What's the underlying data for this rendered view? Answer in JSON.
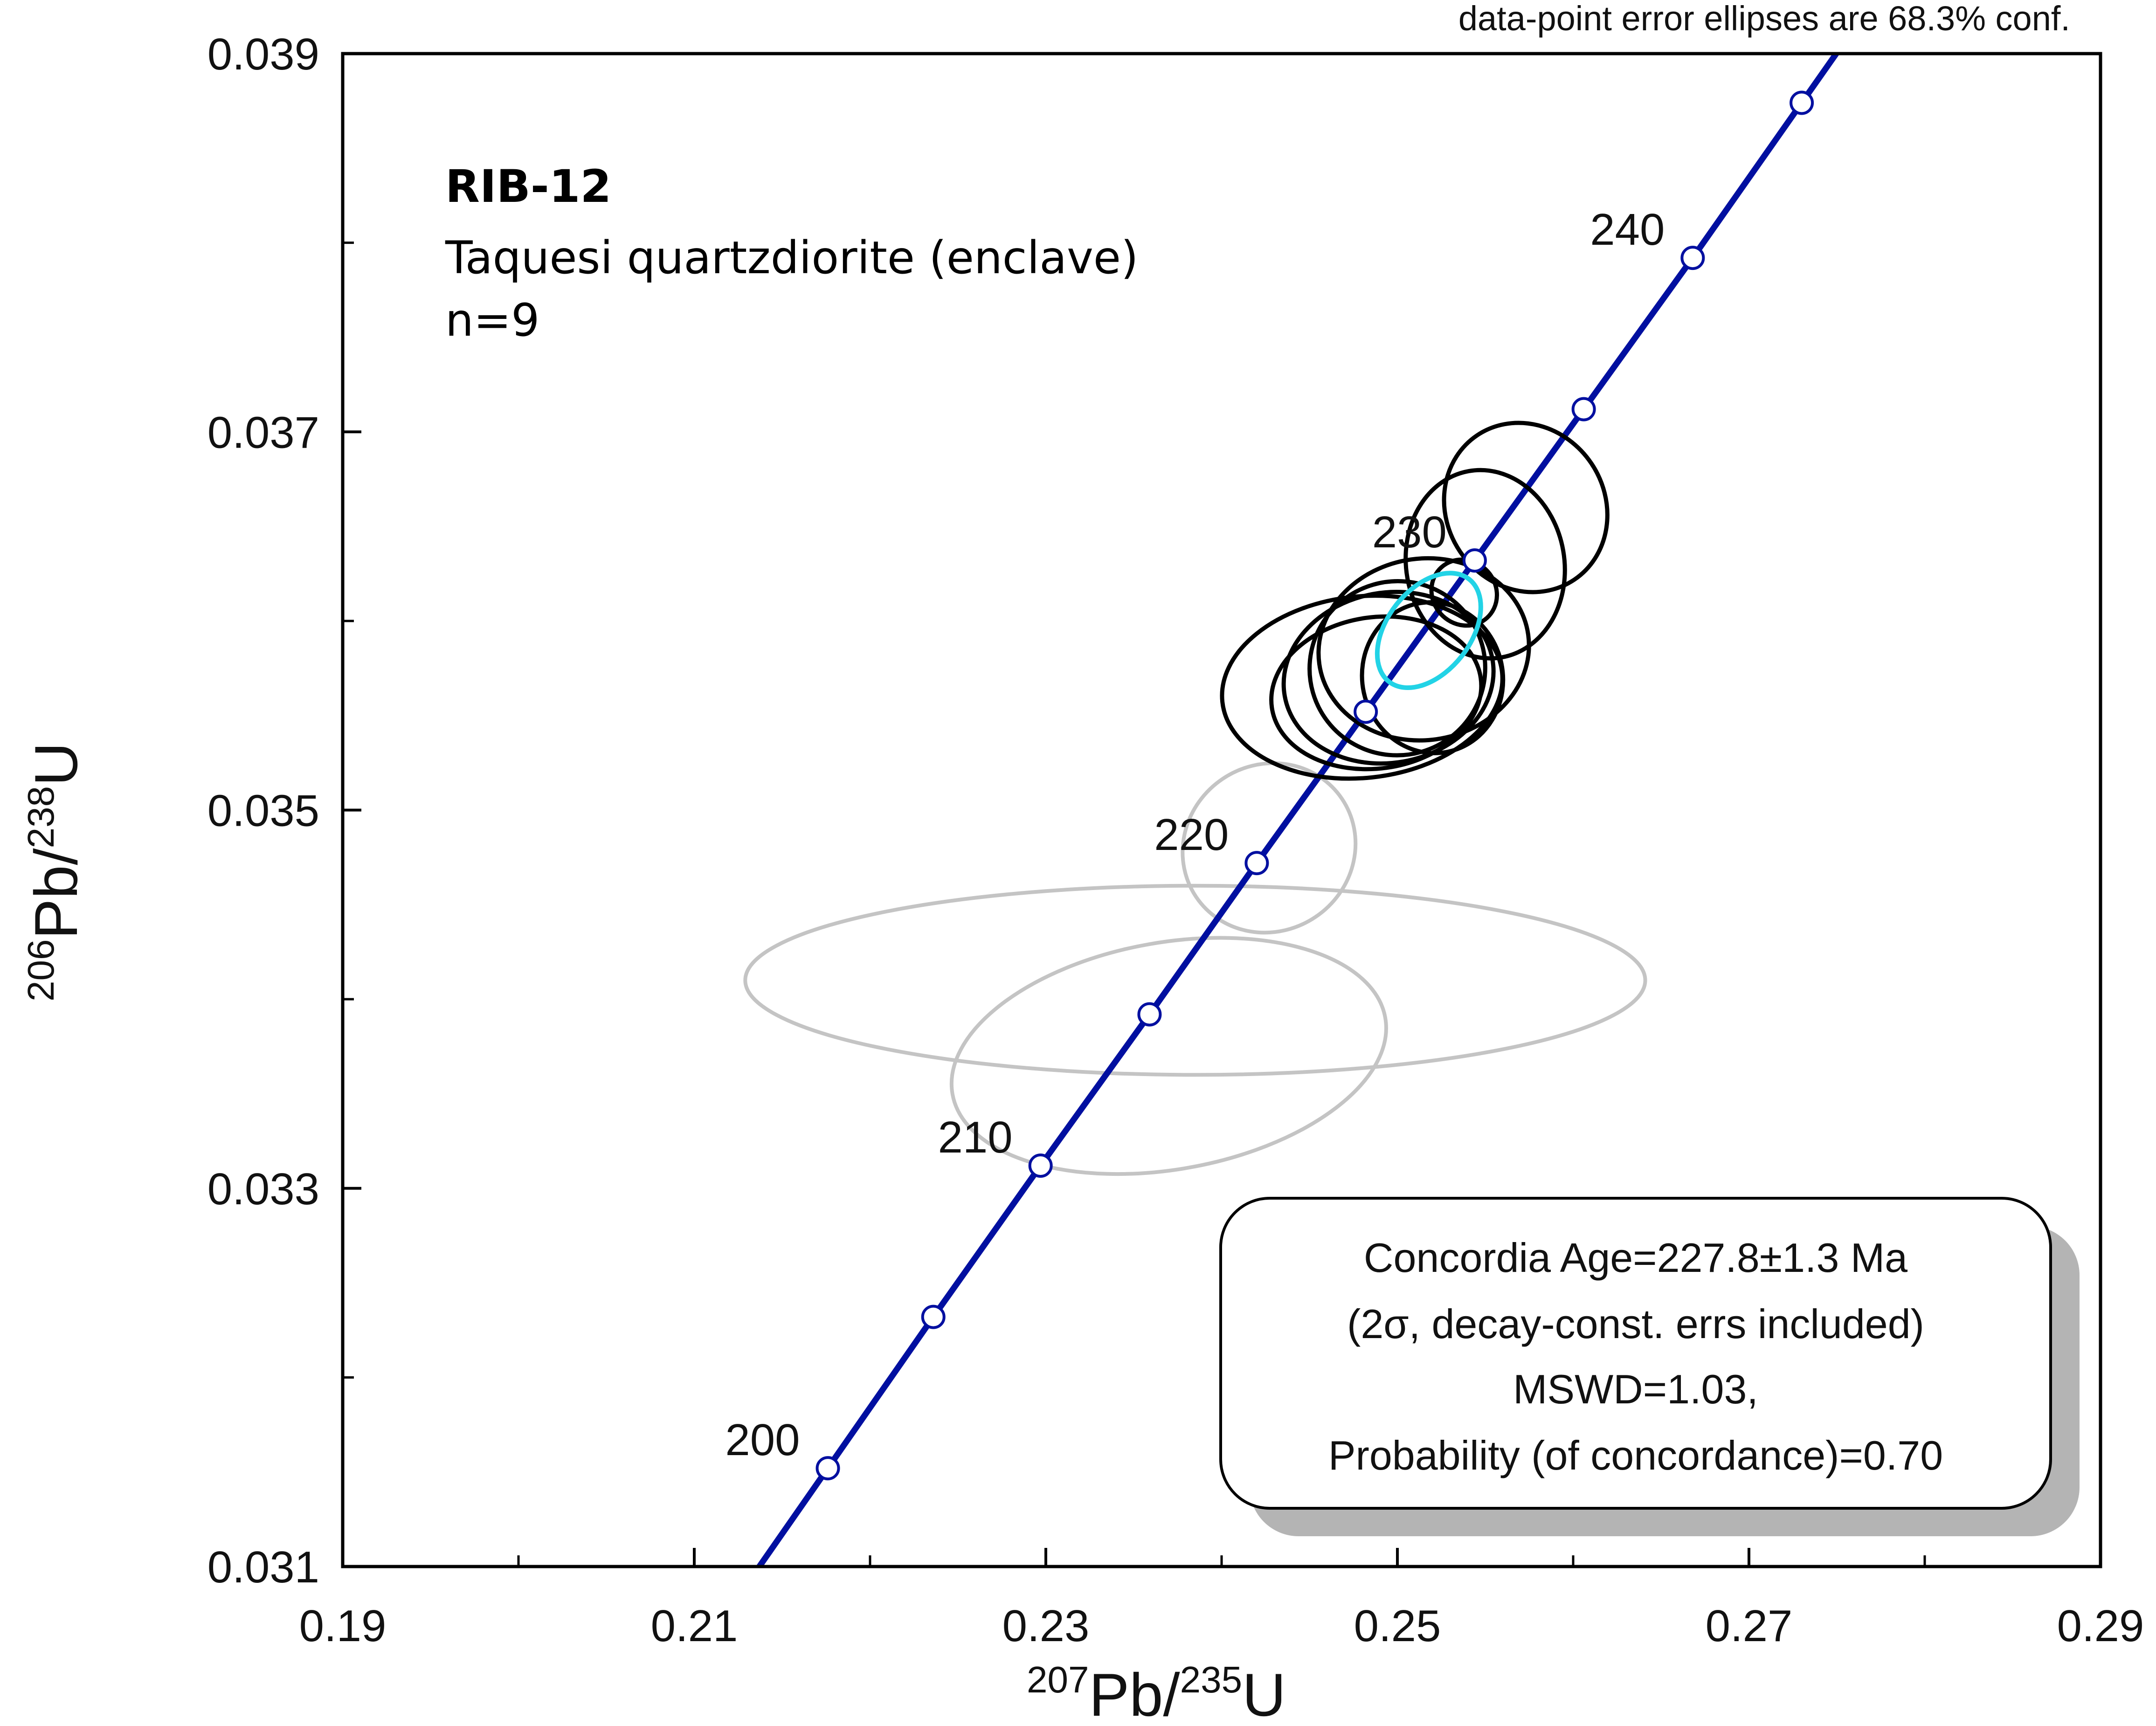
{
  "chart_data": {
    "type": "scatter",
    "subtype": "concordia-diagram",
    "note": "data-point error ellipses are 68.3% conf.",
    "xlabel": {
      "sup1": "207",
      "base1": "Pb/",
      "sup2": "235",
      "base2": "U"
    },
    "ylabel": {
      "sup1": "206",
      "base1": "Pb/",
      "sup2": "238",
      "base2": "U"
    },
    "xlim": [
      0.19,
      0.29
    ],
    "ylim": [
      0.031,
      0.039
    ],
    "x_ticks": [
      {
        "value": 0.19,
        "label": "0.19"
      },
      {
        "value": 0.21,
        "label": "0.21"
      },
      {
        "value": 0.23,
        "label": "0.23"
      },
      {
        "value": 0.25,
        "label": "0.25"
      },
      {
        "value": 0.27,
        "label": "0.27"
      },
      {
        "value": 0.29,
        "label": "0.29"
      }
    ],
    "x_minor_ticks": [
      0.2,
      0.22,
      0.24,
      0.26,
      0.28
    ],
    "y_ticks": [
      {
        "value": 0.031,
        "label": "0.031"
      },
      {
        "value": 0.033,
        "label": "0.033"
      },
      {
        "value": 0.035,
        "label": "0.035"
      },
      {
        "value": 0.037,
        "label": "0.037"
      },
      {
        "value": 0.039,
        "label": "0.039"
      }
    ],
    "y_minor_ticks": [
      0.032,
      0.034,
      0.036,
      0.038
    ],
    "grid": false,
    "sample": {
      "name": "RIB-12",
      "description": "Taquesi quartzdiorite (enclave)",
      "n": "n=9"
    },
    "concordia": {
      "color": "#000fa0",
      "age_markers": [
        {
          "age_ma": 200,
          "x": 0.2176,
          "y": 0.03152,
          "label": "200"
        },
        {
          "age_ma": 205,
          "x": 0.2236,
          "y": 0.03232,
          "label": ""
        },
        {
          "age_ma": 210,
          "x": 0.2297,
          "y": 0.03312,
          "label": "210"
        },
        {
          "age_ma": 215,
          "x": 0.2359,
          "y": 0.03392,
          "label": ""
        },
        {
          "age_ma": 220,
          "x": 0.242,
          "y": 0.03472,
          "label": "220"
        },
        {
          "age_ma": 225,
          "x": 0.2482,
          "y": 0.03552,
          "label": ""
        },
        {
          "age_ma": 230,
          "x": 0.2544,
          "y": 0.03632,
          "label": "230"
        },
        {
          "age_ma": 235,
          "x": 0.2606,
          "y": 0.03712,
          "label": ""
        },
        {
          "age_ma": 240,
          "x": 0.2668,
          "y": 0.03792,
          "label": "240"
        },
        {
          "age_ma": 245,
          "x": 0.273,
          "y": 0.03874,
          "label": ""
        }
      ]
    },
    "ellipses_accepted": [
      {
        "cx": 0.2573,
        "cy": 0.0366,
        "rx": 0.0045,
        "ry": 0.00046,
        "angle_deg": -34
      },
      {
        "cx": 0.255,
        "cy": 0.0363,
        "rx": 0.0045,
        "ry": 0.0005,
        "angle_deg": -10
      },
      {
        "cx": 0.2538,
        "cy": 0.03615,
        "rx": 0.0018,
        "ry": 0.00018,
        "angle_deg": -42
      },
      {
        "cx": 0.2515,
        "cy": 0.03585,
        "rx": 0.006,
        "ry": 0.00048,
        "angle_deg": -8
      },
      {
        "cx": 0.248,
        "cy": 0.03565,
        "rx": 0.008,
        "ry": 0.00048,
        "angle_deg": -6
      },
      {
        "cx": 0.2495,
        "cy": 0.0357,
        "rx": 0.006,
        "ry": 0.00045,
        "angle_deg": -10
      },
      {
        "cx": 0.25,
        "cy": 0.03575,
        "rx": 0.005,
        "ry": 0.00046,
        "angle_deg": -16
      },
      {
        "cx": 0.252,
        "cy": 0.0357,
        "rx": 0.004,
        "ry": 0.0004,
        "angle_deg": -12
      },
      {
        "cx": 0.2488,
        "cy": 0.03562,
        "rx": 0.006,
        "ry": 0.0004,
        "angle_deg": -8
      }
    ],
    "ellipses_rejected": [
      {
        "cx": 0.2427,
        "cy": 0.0348,
        "rx": 0.005,
        "ry": 0.00044,
        "angle_deg": -34
      },
      {
        "cx": 0.2385,
        "cy": 0.0341,
        "rx": 0.0256,
        "ry": 0.0005,
        "angle_deg": 0
      },
      {
        "cx": 0.237,
        "cy": 0.0337,
        "rx": 0.0125,
        "ry": 0.0006,
        "angle_deg": -10
      }
    ],
    "concordia_age_ellipse": {
      "cx": 0.2518,
      "cy": 0.03595,
      "rx": 0.0037,
      "ry": 0.00022,
      "angle_deg": -52,
      "color": "#22d3e6"
    },
    "result_box": {
      "line1": "Concordia Age=227.8±1.3 Ma",
      "line2": " (2σ, decay-const. errs included)",
      "line3": "MSWD=1.03,",
      "line4": "Probability  (of concordance)=0.70"
    }
  }
}
